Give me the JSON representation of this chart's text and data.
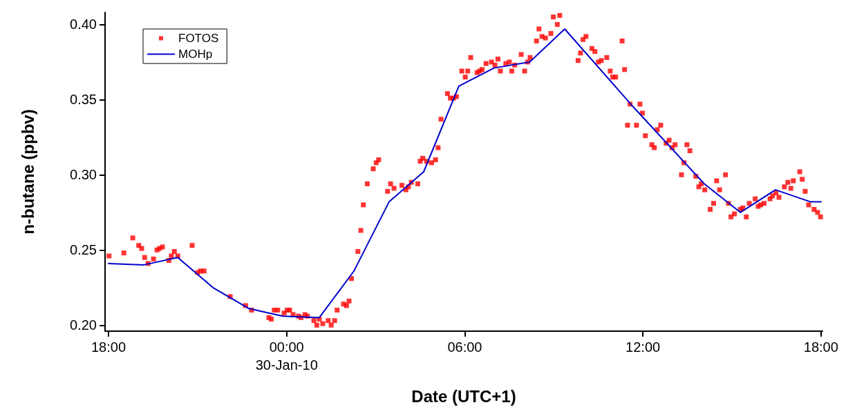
{
  "chart_data": {
    "type": "scatter",
    "xlabel": "Date (UTC+1)",
    "ylabel": "n-butane (ppbv)",
    "xlim": [
      "--01-29T17:53",
      "--01-30T18:03"
    ],
    "ylim": [
      0.196,
      0.408
    ],
    "xticks": [
      {
        "value": "--01-29T18:00",
        "label": "18:00"
      },
      {
        "value": "--01-30T00:00",
        "label": "00:00\n30-Jan-10"
      },
      {
        "value": "--01-30T06:00",
        "label": "06:00"
      },
      {
        "value": "--01-30T12:00",
        "label": "12:00"
      },
      {
        "value": "--01-30T18:00",
        "label": "18:00"
      }
    ],
    "yticks": [
      {
        "value": 0.2,
        "label": "0.20"
      },
      {
        "value": 0.25,
        "label": "0.25"
      },
      {
        "value": 0.3,
        "label": "0.30"
      },
      {
        "value": 0.35,
        "label": "0.35"
      },
      {
        "value": 0.4,
        "label": "0.40"
      }
    ],
    "grid": false,
    "legend": "top left",
    "series": [
      {
        "name": "FOTOS",
        "marker": "square",
        "color": "#ff0000",
        "x": [
          "--01-29T18:01",
          "--01-29T18:31",
          "--01-29T18:49",
          "--01-29T19:01",
          "--01-29T19:07",
          "--01-29T19:13",
          "--01-29T19:20",
          "--01-29T19:31",
          "--01-29T19:38",
          "--01-29T19:43",
          "--01-29T19:49",
          "--01-29T20:02",
          "--01-29T20:07",
          "--01-29T20:13",
          "--01-29T20:20",
          "--01-29T20:49",
          "--01-29T21:00",
          "--01-29T21:06",
          "--01-29T21:13",
          "--01-29T22:06",
          "--01-29T22:37",
          "--01-29T22:49",
          "--01-29T23:24",
          "--01-29T23:29",
          "--01-29T23:35",
          "--01-29T23:42",
          "--01-29T23:55",
          "--01-30T00:01",
          "--01-30T00:06",
          "--01-30T00:13",
          "--01-30T00:24",
          "--01-30T00:29",
          "--01-30T00:37",
          "--01-30T00:42",
          "--01-30T00:55",
          "--01-30T01:01",
          "--01-30T01:06",
          "--01-30T01:13",
          "--01-30T01:24",
          "--01-30T01:30",
          "--01-30T01:37",
          "--01-30T01:42",
          "--01-30T01:55",
          "--01-30T02:01",
          "--01-30T02:06",
          "--01-30T02:11",
          "--01-30T02:24",
          "--01-30T02:30",
          "--01-30T02:35",
          "--01-30T02:43",
          "--01-30T02:55",
          "--01-30T03:01",
          "--01-30T03:06",
          "--01-30T03:24",
          "--01-30T03:30",
          "--01-30T03:37",
          "--01-30T03:53",
          "--01-30T04:01",
          "--01-30T04:06",
          "--01-30T04:12",
          "--01-30T04:25",
          "--01-30T04:30",
          "--01-30T04:35",
          "--01-30T04:43",
          "--01-30T04:53",
          "--01-30T05:01",
          "--01-30T05:06",
          "--01-30T05:12",
          "--01-30T05:25",
          "--01-30T05:31",
          "--01-30T05:37",
          "--01-30T05:43",
          "--01-30T05:54",
          "--01-30T06:01",
          "--01-30T06:06",
          "--01-30T06:12",
          "--01-30T06:25",
          "--01-30T06:30",
          "--01-30T06:35",
          "--01-30T06:43",
          "--01-30T06:54",
          "--01-30T07:01",
          "--01-30T07:07",
          "--01-30T07:12",
          "--01-30T07:23",
          "--01-30T07:30",
          "--01-30T07:35",
          "--01-30T07:41",
          "--01-30T07:54",
          "--01-30T08:01",
          "--01-30T08:07",
          "--01-30T08:12",
          "--01-30T08:25",
          "--01-30T08:30",
          "--01-30T08:36",
          "--01-30T08:43",
          "--01-30T08:54",
          "--01-30T08:59",
          "--01-30T09:07",
          "--01-30T09:12",
          "--01-30T09:49",
          "--01-30T09:54",
          "--01-30T09:59",
          "--01-30T10:05",
          "--01-30T10:17",
          "--01-30T10:23",
          "--01-30T10:30",
          "--01-30T10:36",
          "--01-30T10:47",
          "--01-30T10:54",
          "--01-30T10:59",
          "--01-30T11:05",
          "--01-30T11:18",
          "--01-30T11:23",
          "--01-30T11:29",
          "--01-30T11:34",
          "--01-30T11:47",
          "--01-30T11:54",
          "--01-30T11:59",
          "--01-30T12:05",
          "--01-30T12:18",
          "--01-30T12:23",
          "--01-30T12:29",
          "--01-30T12:36",
          "--01-30T12:47",
          "--01-30T12:53",
          "--01-30T12:59",
          "--01-30T13:05",
          "--01-30T13:18",
          "--01-30T13:23",
          "--01-30T13:29",
          "--01-30T13:35",
          "--01-30T13:47",
          "--01-30T13:53",
          "--01-30T13:58",
          "--01-30T14:05",
          "--01-30T14:16",
          "--01-30T14:23",
          "--01-30T14:29",
          "--01-30T14:35",
          "--01-30T14:47",
          "--01-30T14:53",
          "--01-30T14:58",
          "--01-30T15:05",
          "--01-30T15:17",
          "--01-30T15:22",
          "--01-30T15:29",
          "--01-30T15:35",
          "--01-30T15:47",
          "--01-30T15:53",
          "--01-30T15:58",
          "--01-30T16:05",
          "--01-30T16:17",
          "--01-30T16:22",
          "--01-30T16:29",
          "--01-30T16:35",
          "--01-30T16:46",
          "--01-30T16:53",
          "--01-30T16:59",
          "--01-30T17:04",
          "--01-30T17:17",
          "--01-30T17:22",
          "--01-30T17:28",
          "--01-30T17:35",
          "--01-30T17:46",
          "--01-30T17:53",
          "--01-30T17:59"
        ],
        "values": [
          0.246,
          0.248,
          0.258,
          0.253,
          0.251,
          0.245,
          0.241,
          0.244,
          0.25,
          0.251,
          0.252,
          0.243,
          0.246,
          0.249,
          0.246,
          0.253,
          0.235,
          0.236,
          0.236,
          0.219,
          0.213,
          0.21,
          0.205,
          0.204,
          0.21,
          0.21,
          0.208,
          0.21,
          0.21,
          0.207,
          0.206,
          0.205,
          0.207,
          0.206,
          0.203,
          0.2,
          0.204,
          0.201,
          0.203,
          0.2,
          0.203,
          0.21,
          0.214,
          0.213,
          0.216,
          0.231,
          0.249,
          0.263,
          0.28,
          0.294,
          0.304,
          0.308,
          0.31,
          0.289,
          0.294,
          0.291,
          0.293,
          0.29,
          0.292,
          0.295,
          0.294,
          0.309,
          0.311,
          0.309,
          0.308,
          0.31,
          0.318,
          0.337,
          0.354,
          0.351,
          0.351,
          0.352,
          0.369,
          0.365,
          0.369,
          0.378,
          0.368,
          0.369,
          0.37,
          0.374,
          0.375,
          0.373,
          0.377,
          0.369,
          0.374,
          0.375,
          0.369,
          0.373,
          0.38,
          0.369,
          0.375,
          0.378,
          0.389,
          0.397,
          0.392,
          0.391,
          0.394,
          0.405,
          0.4,
          0.406,
          0.376,
          0.381,
          0.39,
          0.392,
          0.384,
          0.382,
          0.375,
          0.376,
          0.378,
          0.369,
          0.365,
          0.365,
          0.389,
          0.37,
          0.333,
          0.347,
          0.333,
          0.347,
          0.341,
          0.326,
          0.32,
          0.318,
          0.33,
          0.333,
          0.321,
          0.323,
          0.318,
          0.32,
          0.3,
          0.308,
          0.32,
          0.316,
          0.299,
          0.292,
          0.294,
          0.29,
          0.277,
          0.281,
          0.296,
          0.29,
          0.3,
          0.281,
          0.272,
          0.274,
          0.277,
          0.278,
          0.272,
          0.281,
          0.284,
          0.279,
          0.28,
          0.281,
          0.284,
          0.286,
          0.288,
          0.285,
          0.292,
          0.295,
          0.291,
          0.296,
          0.302,
          0.297,
          0.289,
          0.28,
          0.277,
          0.275,
          0.272
        ]
      },
      {
        "name": "MOHp",
        "type": "line",
        "line_style": "solid",
        "color": "#0000cc",
        "x": [
          "--01-29T18:00",
          "--01-29T19:10",
          "--01-29T20:20",
          "--01-29T21:31",
          "--01-29T22:44",
          "--01-29T23:52",
          "--01-30T01:06",
          "--01-30T02:16",
          "--01-30T03:27",
          "--01-30T04:37",
          "--01-30T05:48",
          "--01-30T06:59",
          "--01-30T08:11",
          "--01-30T09:22",
          "--01-30T11:41",
          "--01-30T14:04",
          "--01-30T15:17",
          "--01-30T16:28",
          "--01-30T17:39",
          "--01-30T18:00"
        ],
        "values": [
          0.241,
          0.24,
          0.245,
          0.225,
          0.211,
          0.206,
          0.205,
          0.236,
          0.282,
          0.302,
          0.359,
          0.371,
          0.375,
          0.397,
          0.345,
          0.294,
          0.275,
          0.29,
          0.282,
          0.282
        ]
      }
    ]
  }
}
